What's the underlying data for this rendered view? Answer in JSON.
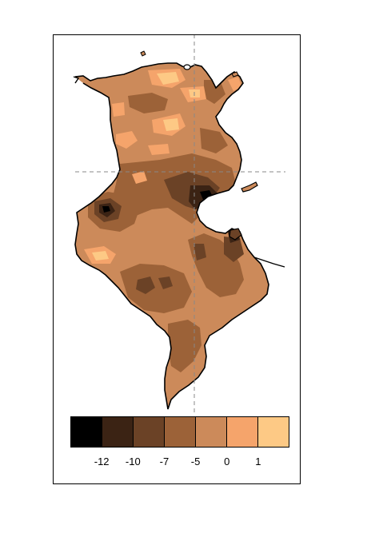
{
  "legend": {
    "colors": [
      "#000000",
      "#3b2314",
      "#6b4226",
      "#9c6238",
      "#cc8a5a",
      "#f5a46b",
      "#fdc985"
    ],
    "tick_labels": [
      "-12",
      "-10",
      "-7",
      "-5",
      "0",
      "1"
    ]
  },
  "map": {
    "region": "Tunisia",
    "background_fill": "#cc8a5a",
    "gridline_style": "dashed"
  }
}
